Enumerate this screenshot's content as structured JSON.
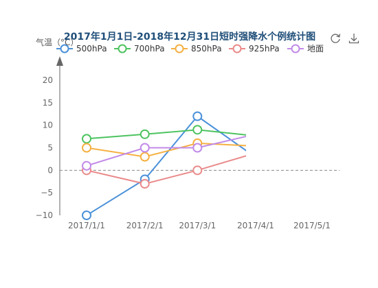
{
  "toolbox": {
    "refresh_icon": "refresh-icon",
    "download_icon": "download-icon"
  },
  "chart_data": {
    "type": "line",
    "title": "2017年1月1日-2018年12月31日短时强降水个例统计图",
    "ylabel": "气温（°C）",
    "xlabel": "",
    "categories": [
      "2017/1/1",
      "2017/2/1",
      "2017/3/1",
      "2017/4/1",
      "2017/5/1"
    ],
    "x_dates": [
      "2017-01-01",
      "2017-02-01",
      "2017-03-01",
      "2017-04-01",
      "2017-05-01"
    ],
    "ylim": [
      -10,
      20
    ],
    "yticks": [
      -10,
      -5,
      0,
      5,
      10,
      15,
      20
    ],
    "ytick_labels": [
      "−10",
      "−5",
      "0",
      "5",
      "10",
      "15",
      "20"
    ],
    "zero_line": {
      "value": 0,
      "style": "dashed"
    },
    "legend_position": "top",
    "grid": false,
    "series": [
      {
        "name": "500hPa",
        "color": "#4a90d9",
        "points": [
          [
            "2017-01-01",
            -10
          ],
          [
            "2017-02-01",
            -2
          ],
          [
            "2017-03-01",
            12
          ],
          [
            "2017-04-04",
            2
          ]
        ]
      },
      {
        "name": "700hPa",
        "color": "#4cc35f",
        "points": [
          [
            "2017-01-01",
            7
          ],
          [
            "2017-02-01",
            8
          ],
          [
            "2017-03-01",
            9
          ],
          [
            "2017-04-04",
            7.5
          ]
        ]
      },
      {
        "name": "850hPa",
        "color": "#f5b041",
        "points": [
          [
            "2017-01-01",
            5
          ],
          [
            "2017-02-01",
            3
          ],
          [
            "2017-03-01",
            6
          ],
          [
            "2017-04-04",
            5.3
          ]
        ]
      },
      {
        "name": "925hPa",
        "color": "#ea8a8a",
        "points": [
          [
            "2017-01-01",
            0
          ],
          [
            "2017-02-01",
            -3
          ],
          [
            "2017-03-01",
            0
          ],
          [
            "2017-04-04",
            4.2
          ]
        ]
      },
      {
        "name": "地面",
        "color": "#c18ae8",
        "points": [
          [
            "2017-01-01",
            1
          ],
          [
            "2017-02-01",
            5
          ],
          [
            "2017-03-01",
            5
          ],
          [
            "2017-04-04",
            8.3
          ]
        ]
      }
    ]
  }
}
